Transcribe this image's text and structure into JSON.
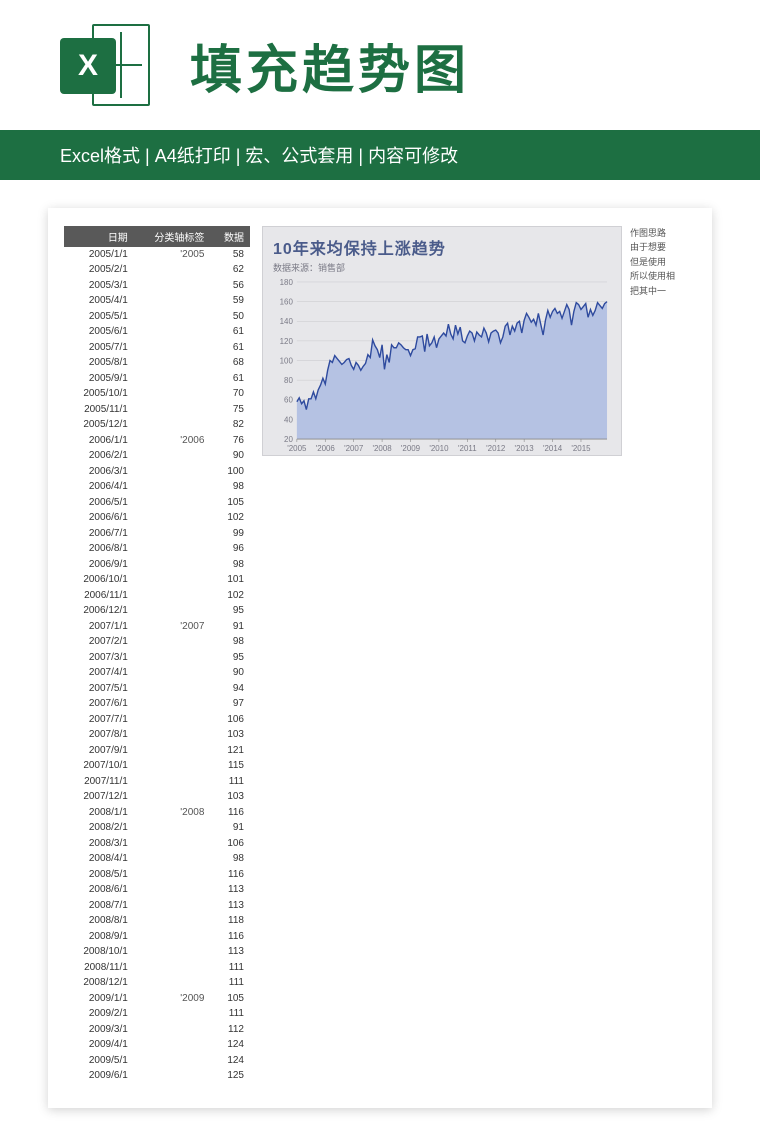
{
  "header": {
    "icon_letter": "X",
    "title": "填充趋势图"
  },
  "subheader": {
    "items": [
      "Excel格式",
      "A4纸打印",
      "宏、公式套用",
      "内容可修改"
    ],
    "separator": " | "
  },
  "table": {
    "headers": [
      "日期",
      "分类轴标签",
      "数据"
    ],
    "rows": [
      [
        "2005/1/1",
        "'2005",
        58
      ],
      [
        "2005/2/1",
        "",
        62
      ],
      [
        "2005/3/1",
        "",
        56
      ],
      [
        "2005/4/1",
        "",
        59
      ],
      [
        "2005/5/1",
        "",
        50
      ],
      [
        "2005/6/1",
        "",
        61
      ],
      [
        "2005/7/1",
        "",
        61
      ],
      [
        "2005/8/1",
        "",
        68
      ],
      [
        "2005/9/1",
        "",
        61
      ],
      [
        "2005/10/1",
        "",
        70
      ],
      [
        "2005/11/1",
        "",
        75
      ],
      [
        "2005/12/1",
        "",
        82
      ],
      [
        "2006/1/1",
        "'2006",
        76
      ],
      [
        "2006/2/1",
        "",
        90
      ],
      [
        "2006/3/1",
        "",
        100
      ],
      [
        "2006/4/1",
        "",
        98
      ],
      [
        "2006/5/1",
        "",
        105
      ],
      [
        "2006/6/1",
        "",
        102
      ],
      [
        "2006/7/1",
        "",
        99
      ],
      [
        "2006/8/1",
        "",
        96
      ],
      [
        "2006/9/1",
        "",
        98
      ],
      [
        "2006/10/1",
        "",
        101
      ],
      [
        "2006/11/1",
        "",
        102
      ],
      [
        "2006/12/1",
        "",
        95
      ],
      [
        "2007/1/1",
        "'2007",
        91
      ],
      [
        "2007/2/1",
        "",
        98
      ],
      [
        "2007/3/1",
        "",
        95
      ],
      [
        "2007/4/1",
        "",
        90
      ],
      [
        "2007/5/1",
        "",
        94
      ],
      [
        "2007/6/1",
        "",
        97
      ],
      [
        "2007/7/1",
        "",
        106
      ],
      [
        "2007/8/1",
        "",
        103
      ],
      [
        "2007/9/1",
        "",
        121
      ],
      [
        "2007/10/1",
        "",
        115
      ],
      [
        "2007/11/1",
        "",
        111
      ],
      [
        "2007/12/1",
        "",
        103
      ],
      [
        "2008/1/1",
        "'2008",
        116
      ],
      [
        "2008/2/1",
        "",
        91
      ],
      [
        "2008/3/1",
        "",
        106
      ],
      [
        "2008/4/1",
        "",
        98
      ],
      [
        "2008/5/1",
        "",
        116
      ],
      [
        "2008/6/1",
        "",
        113
      ],
      [
        "2008/7/1",
        "",
        113
      ],
      [
        "2008/8/1",
        "",
        118
      ],
      [
        "2008/9/1",
        "",
        116
      ],
      [
        "2008/10/1",
        "",
        113
      ],
      [
        "2008/11/1",
        "",
        111
      ],
      [
        "2008/12/1",
        "",
        111
      ],
      [
        "2009/1/1",
        "'2009",
        105
      ],
      [
        "2009/2/1",
        "",
        111
      ],
      [
        "2009/3/1",
        "",
        112
      ],
      [
        "2009/4/1",
        "",
        124
      ],
      [
        "2009/5/1",
        "",
        124
      ],
      [
        "2009/6/1",
        "",
        125
      ]
    ]
  },
  "chart": {
    "type": "area",
    "title": "10年来均保持上涨趋势",
    "subtitle": "数据来源：销售部",
    "background_color": "#e7e7ea",
    "fill_color": "#b5c2e3",
    "line_color": "#2e4a9e",
    "line_width": 1.4,
    "grid_color": "#c8c8cc",
    "axis_text_color": "#7a7a86",
    "title_color": "#4a5b8a",
    "title_fontsize": 16,
    "axis_fontsize": 8,
    "ylim": [
      20,
      180
    ],
    "yticks": [
      20,
      40,
      60,
      80,
      100,
      120,
      140,
      160,
      180
    ],
    "x_labels": [
      "'2005",
      "'2006",
      "'2007",
      "'2008",
      "'2009",
      "'2010",
      "'2011",
      "'2012",
      "'2013",
      "'2014",
      "'2015"
    ],
    "series": [
      58,
      62,
      56,
      59,
      50,
      61,
      61,
      68,
      61,
      70,
      75,
      82,
      76,
      90,
      100,
      98,
      105,
      102,
      99,
      96,
      98,
      101,
      102,
      95,
      91,
      98,
      95,
      90,
      94,
      97,
      106,
      103,
      121,
      115,
      111,
      103,
      116,
      91,
      106,
      98,
      116,
      113,
      113,
      118,
      116,
      113,
      111,
      111,
      105,
      111,
      112,
      124,
      124,
      125,
      109,
      127,
      115,
      118,
      124,
      113,
      122,
      125,
      128,
      125,
      137,
      127,
      122,
      136,
      127,
      134,
      120,
      118,
      125,
      130,
      128,
      120,
      129,
      126,
      124,
      133,
      128,
      119,
      128,
      130,
      131,
      128,
      118,
      124,
      135,
      138,
      126,
      135,
      130,
      138,
      140,
      128,
      141,
      148,
      144,
      139,
      142,
      136,
      148,
      137,
      126,
      141,
      151,
      144,
      150,
      153,
      148,
      150,
      143,
      150,
      157,
      152,
      136,
      150,
      159,
      157,
      152,
      155,
      158,
      144,
      152,
      146,
      151,
      159,
      156,
      153,
      158,
      160
    ]
  },
  "notes": {
    "lines": [
      "作图思路",
      "由于想要",
      "但是使用",
      "所以使用相",
      "把其中一"
    ]
  },
  "colors": {
    "brand_green": "#1d6f42",
    "table_header_bg": "#595959"
  }
}
